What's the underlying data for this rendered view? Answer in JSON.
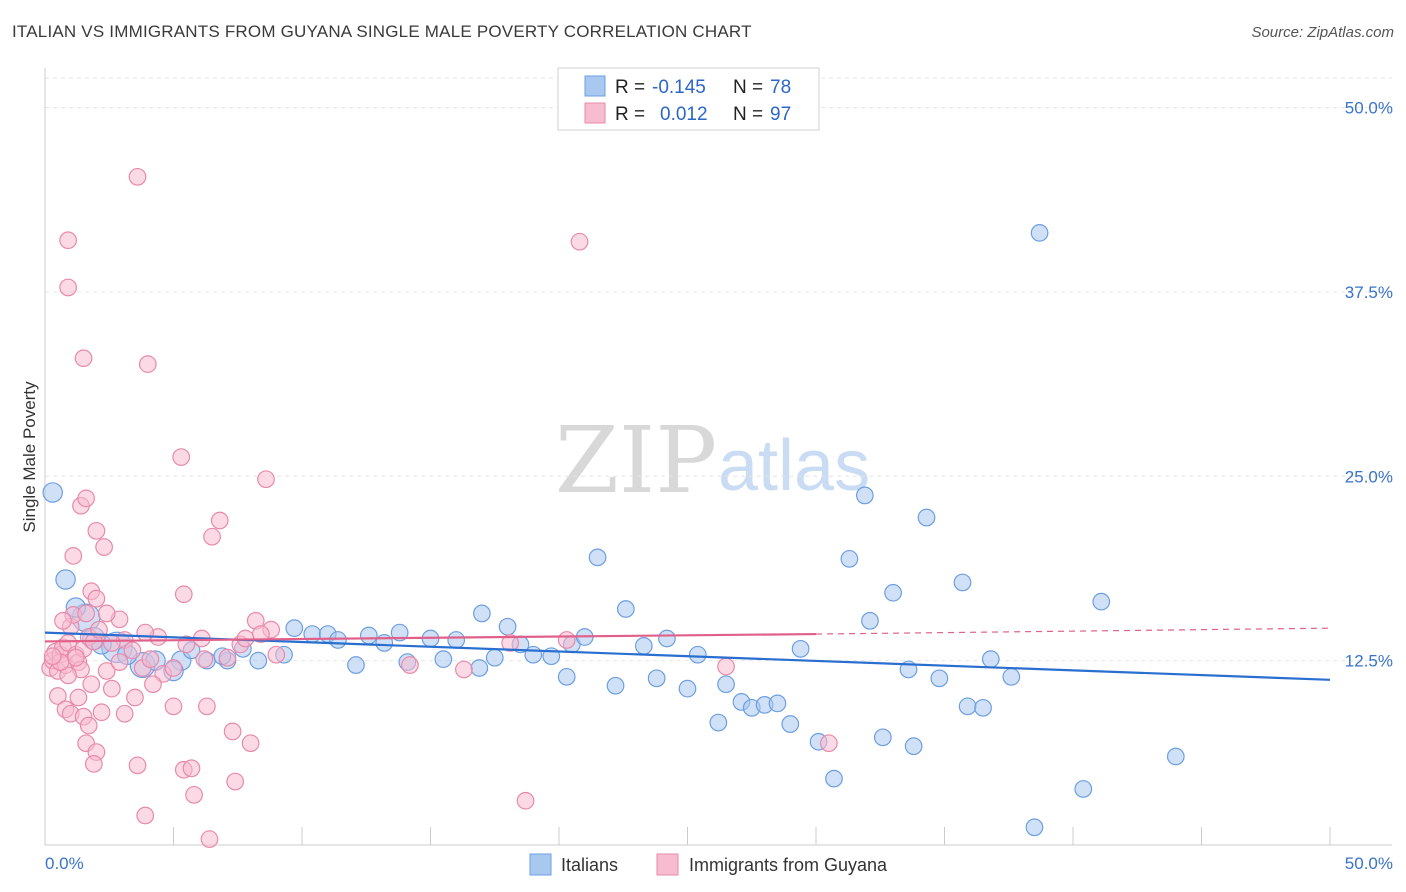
{
  "title": "ITALIAN VS IMMIGRANTS FROM GUYANA SINGLE MALE POVERTY CORRELATION CHART",
  "source": "Source: ZipAtlas.com",
  "watermark": {
    "zip": "ZIP",
    "atlas": "atlas"
  },
  "legend": {
    "r_label": "R =",
    "n_label": "N =",
    "rows": [
      {
        "r": "-0.145",
        "n": "78",
        "color": "#a9c8f0",
        "border": "#6d9fe0"
      },
      {
        "r": "0.012",
        "n": "97",
        "color": "#f7bcd0",
        "border": "#e88aab"
      }
    ]
  },
  "bottom_legend": [
    "Italians",
    "Immigrants from Guyana"
  ],
  "chart_data": {
    "type": "scatter",
    "title": "ITALIAN VS IMMIGRANTS FROM GUYANA SINGLE MALE POVERTY CORRELATION CHART",
    "ylabel": "Single Male Poverty",
    "xlabel": "",
    "xlim": [
      0,
      50
    ],
    "ylim": [
      0,
      52
    ],
    "x_tick_labels": [
      "0.0%",
      "50.0%"
    ],
    "y_ticks": [
      12.5,
      25.0,
      37.5,
      50.0
    ],
    "y_tick_labels": [
      "12.5%",
      "25.0%",
      "37.5%",
      "50.0%"
    ],
    "grid": "horizontal dashed",
    "legend_position": "top-center",
    "series": [
      {
        "name": "Italians",
        "color": "#a9c8f0",
        "stroke": "#6d9fe0",
        "trend": {
          "x": [
            0,
            50
          ],
          "y": [
            14.4,
            11.2
          ],
          "color": "#2a6fd0"
        },
        "points": [
          [
            0.3,
            23.9,
            14
          ],
          [
            0.8,
            18.0,
            14
          ],
          [
            1.6,
            15.4,
            20
          ],
          [
            1.9,
            14.0,
            16
          ],
          [
            2.8,
            13.4,
            22
          ],
          [
            3.8,
            12.2,
            18
          ],
          [
            4.3,
            12.5,
            14
          ],
          [
            5.3,
            12.5,
            14
          ],
          [
            5.7,
            13.2,
            12
          ],
          [
            6.3,
            12.5,
            12
          ],
          [
            7.7,
            13.3,
            12
          ],
          [
            7.1,
            12.5,
            12
          ],
          [
            8.3,
            12.5,
            12
          ],
          [
            9.3,
            12.9,
            12
          ],
          [
            9.7,
            14.7,
            12
          ],
          [
            10.4,
            14.3,
            12
          ],
          [
            11.0,
            14.3,
            12
          ],
          [
            11.4,
            13.9,
            12
          ],
          [
            12.1,
            12.2,
            12
          ],
          [
            12.6,
            14.2,
            12
          ],
          [
            13.2,
            13.7,
            12
          ],
          [
            13.8,
            14.4,
            12
          ],
          [
            14.1,
            12.4,
            12
          ],
          [
            15.0,
            14.0,
            12
          ],
          [
            15.5,
            12.6,
            12
          ],
          [
            16.0,
            13.9,
            12
          ],
          [
            16.9,
            12.0,
            12
          ],
          [
            17.0,
            15.7,
            12
          ],
          [
            17.5,
            12.7,
            12
          ],
          [
            18.0,
            14.8,
            12
          ],
          [
            18.5,
            13.6,
            12
          ],
          [
            19.0,
            12.9,
            12
          ],
          [
            19.7,
            12.8,
            12
          ],
          [
            20.3,
            11.4,
            12
          ],
          [
            20.5,
            13.6,
            12
          ],
          [
            21.0,
            14.1,
            12
          ],
          [
            21.5,
            19.5,
            12
          ],
          [
            22.2,
            10.8,
            12
          ],
          [
            22.6,
            16.0,
            12
          ],
          [
            23.3,
            13.5,
            12
          ],
          [
            23.8,
            11.3,
            12
          ],
          [
            24.2,
            14.0,
            12
          ],
          [
            25.0,
            10.6,
            12
          ],
          [
            25.4,
            12.9,
            12
          ],
          [
            26.2,
            8.3,
            12
          ],
          [
            26.5,
            10.9,
            12
          ],
          [
            27.1,
            9.7,
            12
          ],
          [
            27.5,
            9.3,
            12
          ],
          [
            28.0,
            9.5,
            12
          ],
          [
            28.5,
            9.6,
            12
          ],
          [
            29.0,
            8.2,
            12
          ],
          [
            29.4,
            13.3,
            12
          ],
          [
            30.1,
            7.0,
            12
          ],
          [
            30.7,
            4.5,
            12
          ],
          [
            31.3,
            19.4,
            12
          ],
          [
            31.9,
            23.7,
            12
          ],
          [
            32.1,
            15.2,
            12
          ],
          [
            32.6,
            7.3,
            12
          ],
          [
            33.0,
            17.1,
            12
          ],
          [
            33.6,
            11.9,
            12
          ],
          [
            33.8,
            6.7,
            12
          ],
          [
            34.3,
            22.2,
            12
          ],
          [
            34.8,
            11.3,
            12
          ],
          [
            35.7,
            17.8,
            12
          ],
          [
            35.9,
            9.4,
            12
          ],
          [
            36.5,
            9.3,
            12
          ],
          [
            36.8,
            12.6,
            12
          ],
          [
            37.6,
            11.4,
            12
          ],
          [
            38.5,
            1.2,
            12
          ],
          [
            38.7,
            41.5,
            12
          ],
          [
            40.4,
            3.8,
            12
          ],
          [
            41.1,
            16.5,
            12
          ],
          [
            44.0,
            6.0,
            12
          ],
          [
            5.0,
            11.8,
            14
          ],
          [
            2.2,
            13.6,
            14
          ],
          [
            3.2,
            12.9,
            14
          ],
          [
            6.9,
            12.8,
            12
          ],
          [
            1.2,
            16.1,
            14
          ]
        ]
      },
      {
        "name": "Immigrants from Guyana",
        "color": "#f7bcd0",
        "stroke": "#e88aab",
        "trend": {
          "x": [
            0,
            30
          ],
          "y": [
            13.8,
            14.3
          ],
          "dashed_to": [
            50,
            14.7
          ],
          "color": "#e0608a"
        },
        "points": [
          [
            0.2,
            12.0,
            12
          ],
          [
            0.3,
            12.5,
            12
          ],
          [
            0.4,
            13.1,
            12
          ],
          [
            0.5,
            11.8,
            12
          ],
          [
            0.6,
            12.9,
            12
          ],
          [
            0.7,
            13.4,
            12
          ],
          [
            0.8,
            12.2,
            12
          ],
          [
            0.9,
            13.7,
            12
          ],
          [
            1.0,
            14.8,
            12
          ],
          [
            1.1,
            15.6,
            12
          ],
          [
            1.2,
            12.9,
            12
          ],
          [
            1.3,
            12.4,
            12
          ],
          [
            1.4,
            11.9,
            12
          ],
          [
            1.5,
            13.3,
            12
          ],
          [
            1.6,
            15.7,
            12
          ],
          [
            1.7,
            14.1,
            12
          ],
          [
            1.8,
            17.2,
            12
          ],
          [
            1.9,
            13.8,
            12
          ],
          [
            2.0,
            16.7,
            12
          ],
          [
            2.1,
            14.6,
            12
          ],
          [
            0.5,
            10.1,
            12
          ],
          [
            0.8,
            9.2,
            12
          ],
          [
            1.0,
            8.9,
            12
          ],
          [
            1.3,
            10.0,
            12
          ],
          [
            1.5,
            8.7,
            12
          ],
          [
            1.6,
            6.9,
            12
          ],
          [
            1.7,
            8.1,
            12
          ],
          [
            2.0,
            6.3,
            12
          ],
          [
            2.2,
            9.0,
            12
          ],
          [
            2.4,
            11.8,
            12
          ],
          [
            2.6,
            10.6,
            12
          ],
          [
            2.9,
            12.4,
            12
          ],
          [
            3.1,
            13.9,
            12
          ],
          [
            3.5,
            10.0,
            12
          ],
          [
            3.6,
            5.4,
            12
          ],
          [
            3.8,
            12.0,
            12
          ],
          [
            4.1,
            12.6,
            12
          ],
          [
            4.4,
            14.1,
            12
          ],
          [
            4.6,
            11.6,
            12
          ],
          [
            5.0,
            9.4,
            12
          ],
          [
            5.4,
            5.1,
            12
          ],
          [
            5.5,
            13.6,
            12
          ],
          [
            5.8,
            3.4,
            12
          ],
          [
            6.1,
            14.0,
            12
          ],
          [
            6.4,
            0.4,
            12
          ],
          [
            6.5,
            20.9,
            12
          ],
          [
            6.8,
            22.0,
            12
          ],
          [
            7.1,
            12.7,
            12
          ],
          [
            7.3,
            7.7,
            12
          ],
          [
            7.4,
            4.3,
            12
          ],
          [
            7.6,
            13.6,
            12
          ],
          [
            8.0,
            6.9,
            12
          ],
          [
            8.2,
            15.2,
            12
          ],
          [
            8.6,
            24.8,
            12
          ],
          [
            8.8,
            14.6,
            12
          ],
          [
            9.0,
            12.9,
            12
          ],
          [
            0.9,
            41.0,
            12
          ],
          [
            0.9,
            37.8,
            12
          ],
          [
            1.4,
            23.0,
            12
          ],
          [
            1.5,
            33.0,
            12
          ],
          [
            2.0,
            21.3,
            12
          ],
          [
            2.3,
            20.2,
            12
          ],
          [
            3.6,
            45.3,
            12
          ],
          [
            4.0,
            32.6,
            12
          ],
          [
            5.3,
            26.3,
            12
          ],
          [
            5.4,
            17.0,
            12
          ],
          [
            3.9,
            14.4,
            12
          ],
          [
            2.9,
            15.3,
            12
          ],
          [
            2.4,
            15.7,
            12
          ],
          [
            0.7,
            15.2,
            12
          ],
          [
            1.1,
            19.6,
            12
          ],
          [
            1.6,
            23.5,
            12
          ],
          [
            14.2,
            12.2,
            12
          ],
          [
            16.3,
            11.9,
            12
          ],
          [
            18.1,
            13.7,
            12
          ],
          [
            20.3,
            13.9,
            12
          ],
          [
            20.8,
            40.9,
            12
          ],
          [
            26.5,
            12.1,
            12
          ],
          [
            30.5,
            6.9,
            12
          ],
          [
            18.7,
            3.0,
            12
          ],
          [
            3.9,
            2.0,
            12
          ],
          [
            5.7,
            5.2,
            12
          ],
          [
            3.1,
            8.9,
            12
          ],
          [
            4.2,
            10.9,
            12
          ],
          [
            0.9,
            11.5,
            12
          ],
          [
            1.8,
            10.9,
            12
          ],
          [
            2.6,
            13.7,
            12
          ],
          [
            3.4,
            13.2,
            12
          ],
          [
            6.2,
            12.6,
            12
          ],
          [
            8.4,
            14.3,
            12
          ],
          [
            1.2,
            12.7,
            12
          ],
          [
            0.6,
            12.4,
            12
          ],
          [
            0.3,
            12.8,
            12
          ],
          [
            1.9,
            5.5,
            12
          ],
          [
            6.3,
            9.4,
            12
          ],
          [
            7.8,
            14.0,
            12
          ],
          [
            5.0,
            12.0,
            12
          ]
        ]
      }
    ]
  }
}
